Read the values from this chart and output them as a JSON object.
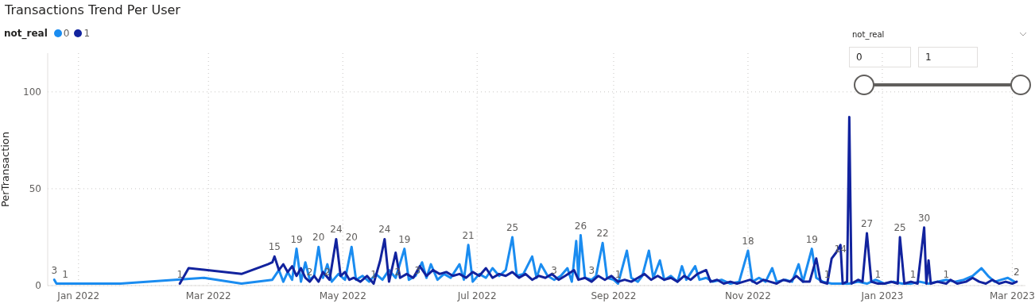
{
  "chart_data": {
    "type": "line",
    "title": "Transactions Trend Per User",
    "ylabel": "PerTransaction",
    "legend_title": "not_real",
    "legend": "top left",
    "grid": true,
    "marker": "none",
    "line_style": "solid",
    "xlim": [
      "2021-12-18",
      "2023-03-07"
    ],
    "xticks": [
      {
        "value": "2022-01-01",
        "label": "Jan 2022"
      },
      {
        "value": "2022-03-01",
        "label": "Mar 2022"
      },
      {
        "value": "2022-05-01",
        "label": "May 2022"
      },
      {
        "value": "2022-07-01",
        "label": "Jul 2022"
      },
      {
        "value": "2022-09-01",
        "label": "Sep 2022"
      },
      {
        "value": "2022-11-01",
        "label": "Nov 2022"
      },
      {
        "value": "2023-01-01",
        "label": "Jan 2023"
      },
      {
        "value": "2023-03-01",
        "label": "Mar 2023"
      }
    ],
    "ylim": [
      0,
      120
    ],
    "yticks": [
      0,
      50,
      100
    ],
    "annotations": [
      "not_real",
      "0",
      "1"
    ],
    "series": [
      {
        "name": "0",
        "color": "#1a8cf0",
        "x": [
          "2021-12-21",
          "2021-12-22",
          "2022-01-20",
          "2022-02-27",
          "2022-03-16",
          "2022-03-30",
          "2022-04-02",
          "2022-04-04",
          "2022-04-06",
          "2022-04-08",
          "2022-04-10",
          "2022-04-12",
          "2022-04-14",
          "2022-04-16",
          "2022-04-18",
          "2022-04-20",
          "2022-04-22",
          "2022-04-24",
          "2022-04-26",
          "2022-04-29",
          "2022-05-02",
          "2022-05-05",
          "2022-05-07",
          "2022-05-10",
          "2022-05-13",
          "2022-05-16",
          "2022-05-19",
          "2022-05-22",
          "2022-05-25",
          "2022-05-29",
          "2022-05-31",
          "2022-06-03",
          "2022-06-06",
          "2022-06-08",
          "2022-06-10",
          "2022-06-13",
          "2022-06-16",
          "2022-06-19",
          "2022-06-23",
          "2022-06-25",
          "2022-06-27",
          "2022-06-29",
          "2022-07-02",
          "2022-07-05",
          "2022-07-08",
          "2022-07-11",
          "2022-07-14",
          "2022-07-17",
          "2022-07-19",
          "2022-07-22",
          "2022-07-26",
          "2022-07-28",
          "2022-07-30",
          "2022-08-02",
          "2022-08-05",
          "2022-08-08",
          "2022-08-11",
          "2022-08-13",
          "2022-08-15",
          "2022-08-16",
          "2022-08-17",
          "2022-08-19",
          "2022-08-22",
          "2022-08-24",
          "2022-08-27",
          "2022-08-29",
          "2022-09-01",
          "2022-09-03",
          "2022-09-07",
          "2022-09-09",
          "2022-09-12",
          "2022-09-14",
          "2022-09-17",
          "2022-09-19",
          "2022-09-22",
          "2022-09-24",
          "2022-09-27",
          "2022-09-30",
          "2022-10-02",
          "2022-10-04",
          "2022-10-08",
          "2022-10-10",
          "2022-10-13",
          "2022-10-16",
          "2022-10-20",
          "2022-10-24",
          "2022-10-28",
          "2022-11-01",
          "2022-11-03",
          "2022-11-06",
          "2022-11-09",
          "2022-11-12",
          "2022-11-14",
          "2022-11-18",
          "2022-11-21",
          "2022-11-24",
          "2022-11-26",
          "2022-11-30",
          "2022-12-02",
          "2022-12-05",
          "2022-12-09",
          "2022-12-13",
          "2022-12-17",
          "2022-12-21",
          "2022-12-25",
          "2022-12-29",
          "2023-01-02",
          "2023-01-06",
          "2023-01-10",
          "2023-01-14",
          "2023-01-18",
          "2023-01-22",
          "2023-01-26",
          "2023-01-30",
          "2023-02-03",
          "2023-02-07",
          "2023-02-11",
          "2023-02-15",
          "2023-02-18",
          "2023-02-21",
          "2023-02-24",
          "2023-02-27",
          "2023-03-02"
        ],
        "values": [
          3,
          1,
          1,
          4,
          1,
          3,
          8,
          2,
          7,
          3,
          19,
          2,
          12,
          3,
          5,
          20,
          4,
          11,
          2,
          6,
          3,
          20,
          3,
          5,
          2,
          6,
          3,
          8,
          4,
          19,
          3,
          5,
          12,
          4,
          11,
          3,
          6,
          4,
          11,
          3,
          21,
          2,
          6,
          4,
          9,
          5,
          8,
          25,
          5,
          6,
          15,
          4,
          11,
          5,
          3,
          5,
          9,
          2,
          23,
          4,
          26,
          4,
          3,
          5,
          22,
          4,
          3,
          1,
          18,
          4,
          2,
          5,
          18,
          4,
          13,
          3,
          5,
          2,
          10,
          3,
          10,
          3,
          4,
          2,
          3,
          1,
          2,
          18,
          2,
          4,
          2,
          9,
          2,
          3,
          2,
          11,
          2,
          19,
          4,
          2,
          1,
          1,
          1,
          2,
          1,
          3,
          1,
          2,
          1,
          1,
          2,
          1,
          2,
          3,
          2,
          3,
          5,
          9,
          5,
          2,
          3,
          4,
          2
        ],
        "value_labels": [
          "3",
          "1",
          null,
          null,
          null,
          null,
          null,
          null,
          null,
          null,
          "19",
          null,
          null,
          null,
          null,
          "20",
          null,
          null,
          null,
          null,
          null,
          "20",
          null,
          null,
          null,
          null,
          null,
          null,
          null,
          "19",
          "3",
          null,
          null,
          null,
          null,
          null,
          null,
          null,
          null,
          null,
          "21",
          null,
          null,
          null,
          null,
          null,
          null,
          "25",
          null,
          null,
          null,
          null,
          null,
          null,
          "3",
          null,
          null,
          null,
          null,
          null,
          "26",
          null,
          "3",
          null,
          "22",
          null,
          null,
          "1",
          null,
          null,
          null,
          null,
          null,
          null,
          null,
          null,
          null,
          null,
          null,
          null,
          null,
          null,
          null,
          null,
          null,
          null,
          null,
          "18",
          null,
          null,
          null,
          null,
          null,
          null,
          null,
          null,
          null,
          "19",
          null,
          null,
          null,
          null,
          null,
          null,
          null,
          null,
          null,
          null,
          null,
          null,
          null,
          null,
          null,
          null,
          null,
          null,
          null,
          null,
          null,
          null,
          null,
          null,
          null
        ]
      },
      {
        "name": "1",
        "color": "#12239e",
        "x": [
          "2022-02-16",
          "2022-02-20",
          "2022-03-16",
          "2022-03-28",
          "2022-03-30",
          "2022-03-31",
          "2022-04-02",
          "2022-04-04",
          "2022-04-06",
          "2022-04-08",
          "2022-04-10",
          "2022-04-12",
          "2022-04-14",
          "2022-04-16",
          "2022-04-18",
          "2022-04-20",
          "2022-04-22",
          "2022-04-25",
          "2022-04-28",
          "2022-04-30",
          "2022-05-02",
          "2022-05-04",
          "2022-05-06",
          "2022-05-09",
          "2022-05-12",
          "2022-05-15",
          "2022-05-18",
          "2022-05-20",
          "2022-05-22",
          "2022-05-25",
          "2022-05-27",
          "2022-05-30",
          "2022-06-02",
          "2022-06-05",
          "2022-06-08",
          "2022-06-11",
          "2022-06-14",
          "2022-06-17",
          "2022-06-20",
          "2022-06-23",
          "2022-06-26",
          "2022-06-29",
          "2022-07-02",
          "2022-07-05",
          "2022-07-08",
          "2022-07-11",
          "2022-07-14",
          "2022-07-17",
          "2022-07-20",
          "2022-07-23",
          "2022-07-26",
          "2022-07-29",
          "2022-08-01",
          "2022-08-04",
          "2022-08-07",
          "2022-08-10",
          "2022-08-14",
          "2022-08-16",
          "2022-08-19",
          "2022-08-22",
          "2022-08-25",
          "2022-08-28",
          "2022-08-31",
          "2022-09-03",
          "2022-09-06",
          "2022-09-09",
          "2022-09-12",
          "2022-09-15",
          "2022-09-18",
          "2022-09-21",
          "2022-09-24",
          "2022-09-27",
          "2022-09-30",
          "2022-10-03",
          "2022-10-06",
          "2022-10-09",
          "2022-10-13",
          "2022-10-15",
          "2022-10-18",
          "2022-10-21",
          "2022-10-24",
          "2022-10-27",
          "2022-10-30",
          "2022-11-02",
          "2022-11-05",
          "2022-11-08",
          "2022-11-11",
          "2022-11-14",
          "2022-11-17",
          "2022-11-20",
          "2022-11-23",
          "2022-11-26",
          "2022-11-29",
          "2022-12-02",
          "2022-12-04",
          "2022-12-07",
          "2022-12-09",
          "2022-12-11",
          "2022-12-13",
          "2022-12-14",
          "2022-12-16",
          "2022-12-17",
          "2022-12-18",
          "2022-12-21",
          "2022-12-23",
          "2022-12-25",
          "2022-12-27",
          "2022-12-30",
          "2023-01-02",
          "2023-01-05",
          "2023-01-08",
          "2023-01-09",
          "2023-01-11",
          "2023-01-14",
          "2023-01-17",
          "2023-01-20",
          "2023-01-21",
          "2023-01-22",
          "2023-01-23",
          "2023-01-26",
          "2023-01-30",
          "2023-02-01",
          "2023-02-04",
          "2023-02-08",
          "2023-02-11",
          "2023-02-14",
          "2023-02-17",
          "2023-02-20",
          "2023-02-23",
          "2023-02-26",
          "2023-03-01",
          "2023-03-03"
        ],
        "values": [
          1,
          9,
          6,
          11,
          12,
          15,
          8,
          11,
          7,
          10,
          5,
          9,
          4,
          2,
          5,
          2,
          7,
          3,
          24,
          5,
          7,
          3,
          4,
          2,
          5,
          1,
          13,
          24,
          2,
          17,
          4,
          6,
          4,
          10,
          5,
          8,
          6,
          7,
          5,
          6,
          4,
          7,
          5,
          9,
          4,
          6,
          5,
          7,
          4,
          6,
          3,
          5,
          4,
          6,
          3,
          5,
          8,
          3,
          4,
          2,
          5,
          3,
          5,
          2,
          3,
          2,
          4,
          6,
          3,
          5,
          3,
          4,
          2,
          5,
          3,
          6,
          8,
          2,
          3,
          1,
          2,
          1,
          2,
          3,
          1,
          3,
          2,
          1,
          3,
          2,
          5,
          2,
          2,
          14,
          2,
          1,
          14,
          17,
          21,
          1,
          2,
          87,
          1,
          3,
          2,
          27,
          2,
          1,
          1,
          2,
          1,
          25,
          1,
          2,
          1,
          30,
          1,
          13,
          1,
          2,
          1,
          3,
          1,
          2,
          4,
          2,
          1,
          3,
          1,
          2,
          1,
          2
        ],
        "value_labels": [
          "1",
          null,
          null,
          null,
          null,
          "15",
          null,
          null,
          null,
          null,
          null,
          null,
          null,
          "2",
          null,
          "2",
          null,
          null,
          "24",
          null,
          null,
          null,
          null,
          null,
          null,
          "1",
          null,
          "24",
          "2",
          null,
          null,
          null,
          null,
          null,
          null,
          null,
          null,
          null,
          null,
          null,
          null,
          null,
          null,
          null,
          null,
          null,
          null,
          null,
          null,
          null,
          null,
          null,
          null,
          null,
          null,
          null,
          null,
          null,
          null,
          null,
          null,
          null,
          null,
          null,
          null,
          null,
          null,
          null,
          null,
          null,
          null,
          null,
          null,
          null,
          null,
          null,
          null,
          null,
          null,
          null,
          null,
          null,
          null,
          null,
          null,
          null,
          null,
          null,
          null,
          null,
          null,
          null,
          null,
          null,
          null,
          "1",
          "14",
          null,
          null,
          null,
          null,
          null,
          null,
          null,
          null,
          "27",
          null,
          "1",
          null,
          null,
          null,
          "25",
          "1",
          null,
          null,
          "30",
          null,
          null,
          null,
          null,
          "1",
          null,
          null,
          null,
          null,
          null,
          null,
          null,
          null,
          null,
          null,
          "2"
        ]
      }
    ]
  }
}
